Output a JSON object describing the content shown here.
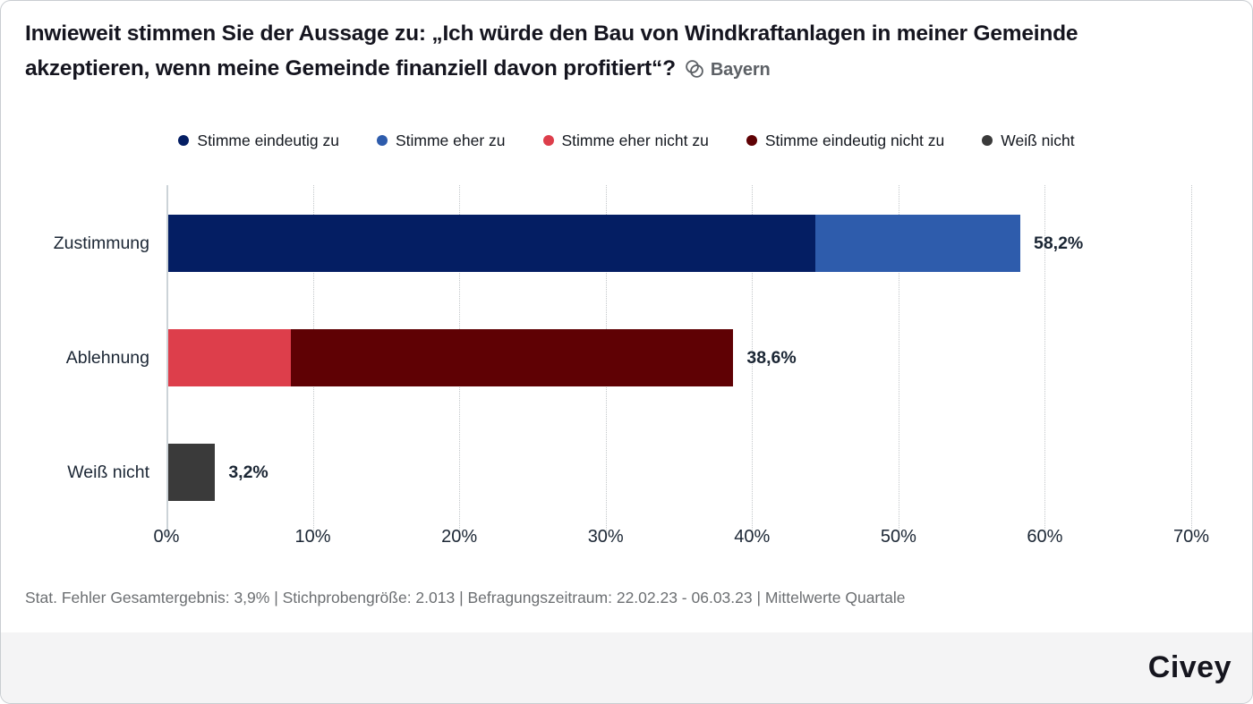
{
  "header": {
    "title": "Inwieweit stimmen Sie der Aussage zu: „Ich würde den Bau von Windkraftanlagen in meiner Gemeinde akzeptieren, wenn meine Gemeinde finanziell davon profitiert“?",
    "region_label": "Bayern",
    "region_icon": "overlapping-circles-icon"
  },
  "legend": {
    "items": [
      {
        "label": "Stimme eindeutig zu",
        "color": "#041e63"
      },
      {
        "label": "Stimme eher zu",
        "color": "#2e5cac"
      },
      {
        "label": "Stimme eher nicht zu",
        "color": "#dd3e4b"
      },
      {
        "label": "Stimme eindeutig nicht zu",
        "color": "#5f0104"
      },
      {
        "label": "Weiß nicht",
        "color": "#3a3a3a"
      }
    ]
  },
  "chart_data": {
    "type": "bar",
    "orientation": "horizontal",
    "stacked": true,
    "categories": [
      "Zustimmung",
      "Ablehnung",
      "Weiß nicht"
    ],
    "series": [
      {
        "name": "Stimme eindeutig zu",
        "color": "#041e63",
        "values": [
          44.2,
          0,
          0
        ]
      },
      {
        "name": "Stimme eher zu",
        "color": "#2e5cac",
        "values": [
          14.0,
          0,
          0
        ]
      },
      {
        "name": "Stimme eher nicht zu",
        "color": "#dd3e4b",
        "values": [
          0,
          8.4,
          0
        ]
      },
      {
        "name": "Stimme eindeutig nicht zu",
        "color": "#5f0104",
        "values": [
          0,
          30.2,
          0
        ]
      },
      {
        "name": "Weiß nicht",
        "color": "#3a3a3a",
        "values": [
          0,
          0,
          3.2
        ]
      }
    ],
    "totals": [
      58.2,
      38.6,
      3.2
    ],
    "total_labels": [
      "58,2%",
      "38,6%",
      "3,2%"
    ],
    "xlim": [
      0,
      70
    ],
    "x_ticks": [
      "0%",
      "10%",
      "20%",
      "30%",
      "40%",
      "50%",
      "60%",
      "70%"
    ],
    "grid": "vertical-dotted",
    "legend_position": "top"
  },
  "footer": {
    "stats_line": "Stat. Fehler Gesamtergebnis: 3,9% | Stichprobengröße: 2.013 | Befragungszeitraum: 22.02.23 - 06.03.23 | Mittelwerte Quartale",
    "brand": "Civey"
  }
}
